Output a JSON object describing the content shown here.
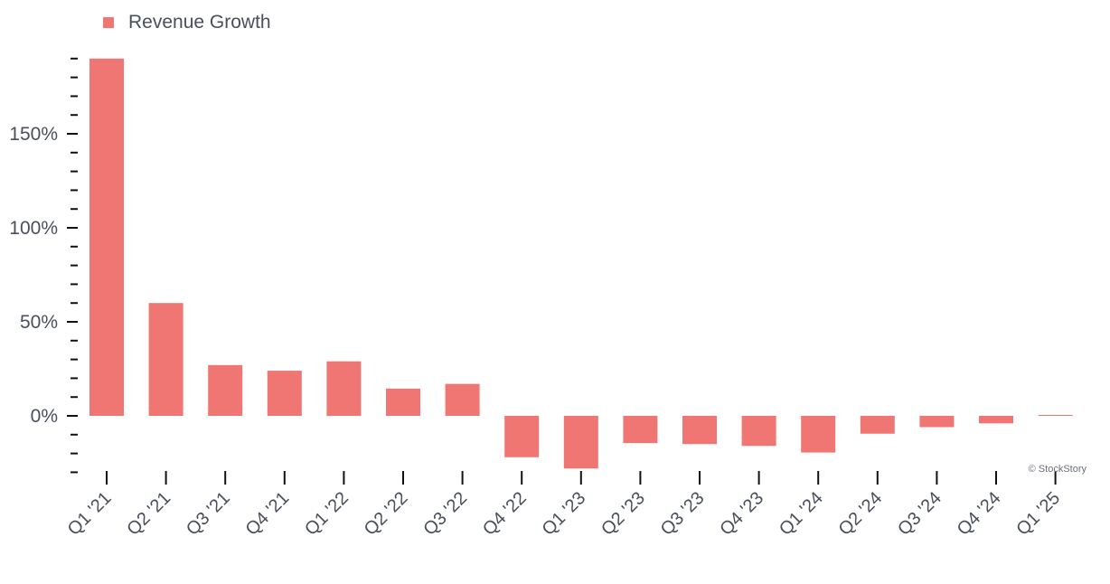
{
  "chart_data": {
    "type": "bar",
    "legend": {
      "position": "top-left",
      "entries": [
        {
          "name": "Revenue Growth",
          "color": "#ef7672"
        }
      ]
    },
    "series": [
      {
        "name": "Revenue Growth",
        "color": "#ef7672",
        "values": [
          190,
          60,
          27,
          24,
          29,
          14.5,
          17,
          -22,
          -28,
          -14.5,
          -15,
          -16,
          -19.5,
          -9.5,
          -6,
          -4,
          0.5
        ]
      }
    ],
    "categories": [
      "Q1 '21",
      "Q2 '21",
      "Q3 '21",
      "Q4 '21",
      "Q1 '22",
      "Q2 '22",
      "Q3 '22",
      "Q4 '22",
      "Q1 '23",
      "Q2 '23",
      "Q3 '23",
      "Q4 '23",
      "Q1 '24",
      "Q2 '24",
      "Q3 '24",
      "Q4 '24",
      "Q1 '25"
    ],
    "y_ticks": [
      0,
      50,
      100,
      150
    ],
    "y_tick_labels": [
      "0%",
      "50%",
      "100%",
      "150%"
    ],
    "ylim": [
      -30,
      190
    ],
    "grid": false,
    "credit": "© StockStory"
  }
}
